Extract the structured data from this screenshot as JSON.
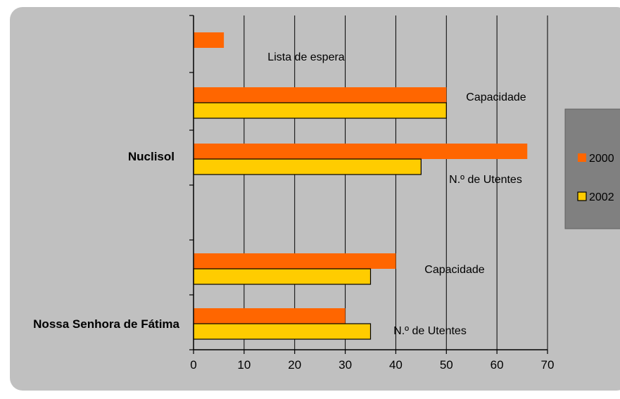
{
  "chart_data": {
    "type": "bar",
    "orientation": "horizontal",
    "xlim": [
      0,
      70
    ],
    "x_ticks": [
      "0",
      "10",
      "20",
      "30",
      "40",
      "50",
      "60",
      "70"
    ],
    "grid": "vertical",
    "groups": [
      {
        "label": "Nuclisol",
        "rows": [
          {
            "label": "Lista de espera",
            "values": [
              6,
              null
            ]
          },
          {
            "label": "Capacidade",
            "values": [
              50,
              50
            ]
          },
          {
            "label": "N.º de Utentes",
            "values": [
              66,
              45
            ]
          }
        ]
      },
      {
        "label": "Nossa Senhora de Fátima",
        "rows": [
          {
            "label": "Capacidade",
            "values": [
              40,
              35
            ]
          },
          {
            "label": "N.º de Utentes",
            "values": [
              30,
              35
            ]
          }
        ]
      }
    ],
    "series": [
      {
        "name": "2000",
        "color": "#ff6600"
      },
      {
        "name": "2002",
        "color": "#ffcc00"
      }
    ],
    "legend_position": "right"
  }
}
